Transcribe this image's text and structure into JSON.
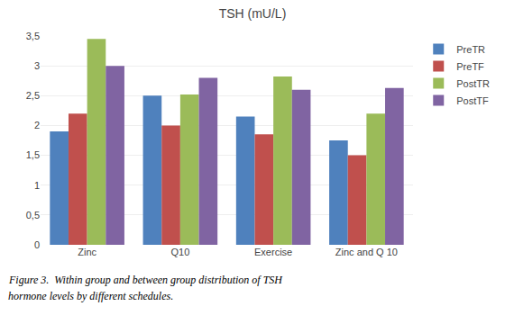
{
  "chart_data": {
    "type": "bar",
    "title": "TSH (mU/L)",
    "categories": [
      "Zinc",
      "Q10",
      "Exercise",
      "Zinc and Q 10"
    ],
    "series": [
      {
        "name": "PreTR",
        "color": "#4F81BD",
        "values": [
          1.9,
          2.5,
          2.15,
          1.75
        ]
      },
      {
        "name": "PreTF",
        "color": "#C0504D",
        "values": [
          2.2,
          2.0,
          1.85,
          1.5
        ]
      },
      {
        "name": "PostTR",
        "color": "#9BBB59",
        "values": [
          3.45,
          2.52,
          2.82,
          2.2
        ]
      },
      {
        "name": "PostTF",
        "color": "#8064A2",
        "values": [
          3.0,
          2.8,
          2.6,
          2.63
        ]
      }
    ],
    "ylim": [
      0,
      3.5
    ],
    "yticks": [
      0,
      {
        "value": 0.5,
        "label": "0,5"
      },
      1,
      {
        "value": 1.5,
        "label": "1,5"
      },
      2,
      {
        "value": 2.5,
        "label": "2,5"
      },
      3,
      {
        "value": 3.5,
        "label": "3,5"
      }
    ],
    "grid": true,
    "legend": "right",
    "annotations": [
      "Figure 3.  Within group and between group distribution of TSH",
      "hormone levels by different schedules."
    ]
  }
}
